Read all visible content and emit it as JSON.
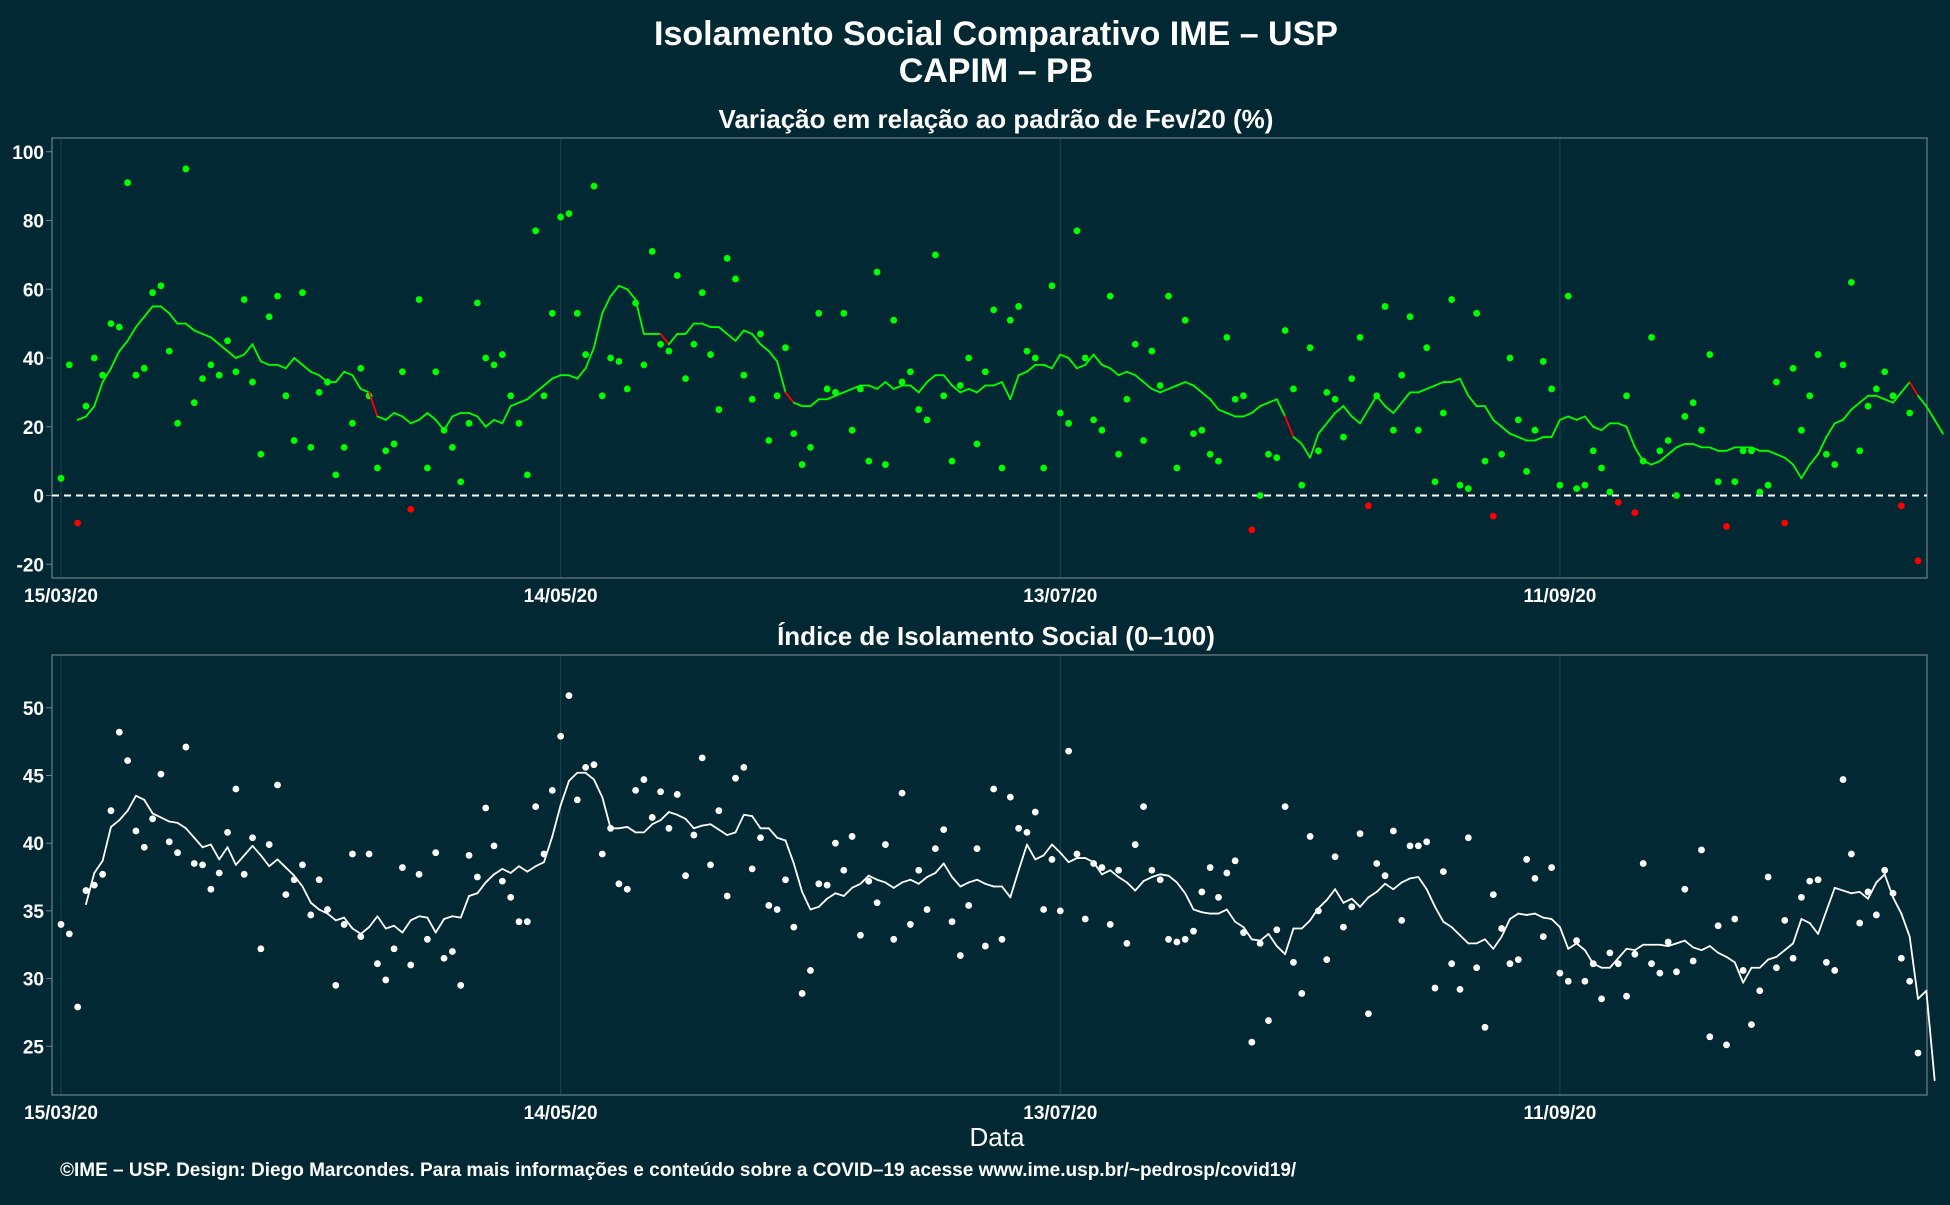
{
  "title": "Isolamento Social Comparativo IME – USP",
  "subtitle": "CAPIM – PB",
  "xlabel": "Data",
  "caption": "©IME – USP. Design: Diego Marcondes. Para mais informações e conteúdo sobre a COVID–19 acesse www.ime.usp.br/~pedrosp/covid19/",
  "colors": {
    "background": "#022834",
    "panel_border": "#6b7f86",
    "gridline": "#1b4450",
    "positive": "#00ff00",
    "negative": "#ff0000",
    "index": "#ffffff"
  },
  "chart_data": [
    {
      "type": "scatter",
      "title": "Variação em relação ao padrão de Fev/20 (%)",
      "x_start": "15/03/20",
      "x_end": "13/10/20",
      "x_ticks": [
        "15/03/20",
        "14/05/20",
        "13/07/20",
        "11/09/20"
      ],
      "ylim": [
        -24,
        104
      ],
      "y_ticks": [
        100,
        80,
        60,
        40,
        20,
        0,
        -20
      ],
      "reference_line": 0,
      "series": [
        {
          "kind": "points",
          "color_rule": "green if >= 0, red if < 0",
          "values": [
            5,
            38,
            -8,
            26,
            40,
            35,
            50,
            49,
            91,
            35,
            37,
            59,
            61,
            42,
            21,
            95,
            27,
            34,
            38,
            35,
            45,
            36,
            57,
            33,
            12,
            52,
            58,
            29,
            16,
            59,
            14,
            30,
            33,
            6,
            14,
            21,
            37,
            29,
            8,
            13,
            15,
            36,
            -4,
            57,
            8,
            36,
            19,
            14,
            4,
            21,
            56,
            40,
            38,
            41,
            29,
            21,
            6,
            77,
            29,
            53,
            81,
            82,
            53,
            41,
            90,
            29,
            40,
            39,
            31,
            56,
            38,
            71,
            44,
            42,
            64,
            34,
            44,
            59,
            41,
            25,
            69,
            63,
            35,
            28,
            47,
            16,
            29,
            43,
            18,
            9,
            14,
            53,
            31,
            30,
            53,
            19,
            31,
            10,
            65,
            9,
            51,
            33,
            36,
            25,
            22,
            70,
            29,
            10,
            32,
            40,
            15,
            36,
            54,
            8,
            51,
            55,
            42,
            40,
            8,
            61,
            24,
            21,
            77,
            40,
            22,
            19,
            58,
            12,
            28,
            44,
            16,
            42,
            32,
            58,
            8,
            51,
            18,
            19,
            12,
            10,
            46,
            28,
            29,
            -10,
            0,
            12,
            11,
            48,
            31,
            3,
            43,
            13,
            30,
            28,
            17,
            34,
            46,
            -3,
            29,
            55,
            19,
            35,
            52,
            19,
            43,
            4,
            24,
            57,
            3,
            2,
            53,
            10,
            -6,
            12,
            40,
            22,
            7,
            19,
            39,
            31,
            3,
            58,
            2,
            3,
            13,
            8,
            1,
            -2,
            29,
            -5,
            10,
            46,
            13,
            16,
            0,
            23,
            27,
            19,
            41,
            4,
            -9,
            4,
            13,
            13,
            1,
            3,
            33,
            -8,
            37,
            19,
            29,
            41,
            12,
            9,
            38,
            62,
            13,
            26,
            31,
            36,
            29,
            -3,
            24,
            -19
          ]
        },
        {
          "kind": "line",
          "name": "",
          "start_index": 2,
          "values": [
            22,
            23,
            26,
            33,
            37,
            42,
            45,
            49,
            52,
            55,
            55,
            53,
            50,
            50,
            48,
            47,
            46,
            44,
            42,
            40,
            41,
            44,
            39,
            38,
            38,
            37,
            40,
            38,
            36,
            35,
            33,
            33,
            36,
            35,
            31,
            30,
            23,
            22,
            24,
            23,
            21,
            22,
            24,
            22,
            19,
            23,
            24,
            24,
            23,
            20,
            22,
            21,
            26,
            27,
            28,
            30,
            32,
            34,
            35,
            35,
            34,
            37,
            43,
            53,
            58,
            61,
            60,
            57,
            47,
            47,
            47,
            44,
            47,
            47,
            50,
            50,
            49,
            49,
            47,
            45,
            48,
            47,
            44,
            42,
            39,
            30,
            27,
            26,
            26,
            28,
            28,
            29,
            30,
            31,
            32,
            32,
            31,
            33,
            31,
            32,
            32,
            30,
            33,
            35,
            35,
            32,
            30,
            31,
            30,
            32,
            32,
            33,
            28,
            35,
            36,
            38,
            38,
            37,
            41,
            40,
            37,
            38,
            41,
            38,
            37,
            35,
            36,
            35,
            33,
            31,
            30,
            31,
            32,
            33,
            32,
            30,
            28,
            25,
            24,
            23,
            23,
            24,
            26,
            27,
            28,
            23,
            17,
            15,
            11,
            18,
            21,
            24,
            26,
            23,
            21,
            25,
            29,
            26,
            24,
            27,
            30,
            30,
            31,
            32,
            33,
            33,
            34,
            29,
            26,
            26,
            22,
            20,
            18,
            17,
            16,
            16,
            17,
            17,
            22,
            23,
            22,
            23,
            20,
            19,
            21,
            21,
            20,
            14,
            10,
            9,
            10,
            12,
            14,
            15,
            15,
            14,
            14,
            13,
            13,
            14,
            14,
            14,
            13,
            13,
            12,
            11,
            9,
            5,
            9,
            12,
            17,
            21,
            22,
            25,
            27,
            29,
            29,
            28,
            27,
            30,
            33,
            29,
            26,
            22,
            18
          ]
        }
      ]
    },
    {
      "type": "scatter",
      "title": "Índice de Isolamento Social (0–100)",
      "x_start": "15/03/20",
      "x_end": "13/10/20",
      "x_ticks": [
        "15/03/20",
        "14/05/20",
        "13/07/20",
        "11/09/20"
      ],
      "ylim": [
        21.4,
        53.9
      ],
      "y_ticks": [
        50,
        45,
        40,
        35,
        30,
        25
      ],
      "series": [
        {
          "kind": "points",
          "color": "#ffffff",
          "values": [
            34,
            33.3,
            27.9,
            36.5,
            36.9,
            37.7,
            42.4,
            48.2,
            46.1,
            40.9,
            39.7,
            41.8,
            45.1,
            40.1,
            39.3,
            47.1,
            38.5,
            38.4,
            36.6,
            37.8,
            40.8,
            44,
            37.7,
            40.4,
            32.2,
            39.9,
            44.3,
            36.2,
            37.3,
            38.4,
            34.7,
            37.3,
            35.1,
            29.5,
            34,
            39.2,
            33.1,
            39.2,
            31.1,
            29.9,
            32.2,
            38.2,
            31,
            37.7,
            32.9,
            39.3,
            31.5,
            32,
            29.5,
            39.1,
            37.5,
            42.6,
            39.8,
            37.2,
            36,
            34.2,
            34.2,
            42.7,
            39.2,
            43.9,
            47.9,
            50.9,
            43.2,
            45.6,
            45.8,
            39.2,
            41.1,
            37,
            36.6,
            43.9,
            44.7,
            41.9,
            43.8,
            41.1,
            43.6,
            37.6,
            40.6,
            46.3,
            38.4,
            42.4,
            36.1,
            44.8,
            45.6,
            38.1,
            40.4,
            35.4,
            35.1,
            37.3,
            33.8,
            28.9,
            30.6,
            37,
            36.9,
            40,
            38,
            40.5,
            33.2,
            37.2,
            35.6,
            39.9,
            32.9,
            43.7,
            34,
            38,
            35.1,
            39.6,
            41,
            34.2,
            31.7,
            35.4,
            39.6,
            32.4,
            44,
            32.9,
            43.4,
            41.1,
            40.8,
            42.3,
            35.1,
            38.8,
            35,
            46.8,
            39.2,
            34.4,
            38.5,
            38.2,
            34,
            38,
            32.6,
            39.9,
            42.7,
            38,
            37.3,
            32.9,
            32.7,
            32.9,
            33.5,
            36.4,
            38.2,
            36,
            37.8,
            38.7,
            33.4,
            25.3,
            32.6,
            26.9,
            33.6,
            42.7,
            31.2,
            28.9,
            40.5,
            35,
            31.4,
            39,
            33.8,
            35.3,
            40.7,
            27.4,
            38.5,
            37.6,
            40.9,
            34.3,
            39.8,
            39.8,
            40.1,
            29.3,
            37.9,
            31.1,
            29.2,
            40.4,
            30.8,
            26.4,
            36.2,
            33.7,
            31.1,
            31.4,
            38.8,
            37.4,
            33.1,
            38.2,
            30.4,
            29.8,
            32.8,
            29.8,
            31.1,
            28.5,
            31.9,
            31.1,
            28.7,
            31.8,
            38.5,
            31.1,
            30.4,
            32.7,
            30.5,
            36.6,
            31.3,
            39.5,
            25.7,
            33.9,
            25.1,
            34.4,
            30.6,
            26.6,
            29.1,
            37.5,
            30.8,
            34.3,
            31.5,
            36,
            37.2,
            37.3,
            31.2,
            30.6,
            44.7,
            39.2,
            34.1,
            36.4,
            34.7,
            38,
            36.3,
            31.5,
            29.8,
            24.5
          ]
        },
        {
          "kind": "line",
          "name": "",
          "start_index": 3,
          "values": [
            35.5,
            37.8,
            38.7,
            41.2,
            41.7,
            42.4,
            43.5,
            43.2,
            42.2,
            41.9,
            41.6,
            41.5,
            41.1,
            40.4,
            39.7,
            39.9,
            38.8,
            39.7,
            38.4,
            39.1,
            39.8,
            39.1,
            38.3,
            38.8,
            38.2,
            37.6,
            36.8,
            35.6,
            35.1,
            34.8,
            34.3,
            34.5,
            33.7,
            33.3,
            33.8,
            34.6,
            33.7,
            33.9,
            33.4,
            34.3,
            34.6,
            34.5,
            33.4,
            34.4,
            34.6,
            34.5,
            36.1,
            36.3,
            37.1,
            37.7,
            38.1,
            37.8,
            38.3,
            37.9,
            38.3,
            38.6,
            40.5,
            42.8,
            44.6,
            45.2,
            45.2,
            44.7,
            43.4,
            41.1,
            41.1,
            41.2,
            40.8,
            40.8,
            41.4,
            41.7,
            42.3,
            42.1,
            41.8,
            41.1,
            41.3,
            41.4,
            41,
            40.6,
            40.8,
            42.1,
            42,
            41.1,
            41.1,
            40.4,
            40.2,
            38.5,
            36.4,
            35.1,
            35.3,
            35.9,
            36.3,
            36.1,
            36.7,
            37,
            37.6,
            37.3,
            37.1,
            36.7,
            37.1,
            37.3,
            37,
            37.5,
            37.8,
            38.5,
            37.5,
            36.8,
            37.1,
            37.3,
            37,
            36.8,
            36.8,
            36,
            38,
            39.9,
            38.8,
            39.1,
            39.9,
            39.3,
            38.6,
            38.9,
            38.9,
            38.6,
            37.7,
            38,
            37.5,
            37.1,
            36.5,
            37.2,
            37.5,
            37.7,
            37.6,
            37.1,
            36.3,
            35.1,
            34.9,
            34.8,
            34.8,
            35.1,
            34.2,
            33.8,
            32.9,
            32.8,
            33.3,
            32.4,
            31.8,
            33.7,
            33.7,
            34.3,
            35.2,
            35.8,
            36.6,
            35.6,
            35.9,
            35.3,
            36,
            36.4,
            37,
            36.6,
            37.1,
            37.4,
            37.5,
            36.6,
            35.3,
            34.2,
            33.8,
            33.2,
            32.6,
            32.6,
            32.9,
            32.2,
            33.1,
            34.4,
            34.8,
            34.7,
            34.8,
            34.5,
            34.4,
            33.8,
            32.2,
            32.6,
            32.1,
            31.1,
            30.8,
            30.8,
            31.5,
            32.2,
            32.1,
            32.5,
            32.5,
            32.5,
            32.4,
            32.6,
            32.8,
            32.3,
            32.1,
            32.4,
            31.9,
            31.6,
            31.2,
            29.7,
            30.8,
            30.8,
            31.4,
            31.6,
            32.1,
            32.6,
            34.4,
            34.1,
            33.3,
            35,
            36.7,
            36.5,
            36.3,
            36.4,
            35.9,
            37.1,
            37.7,
            36,
            34.8,
            33.1,
            28.5,
            29.1,
            22.5
          ]
        }
      ]
    }
  ]
}
